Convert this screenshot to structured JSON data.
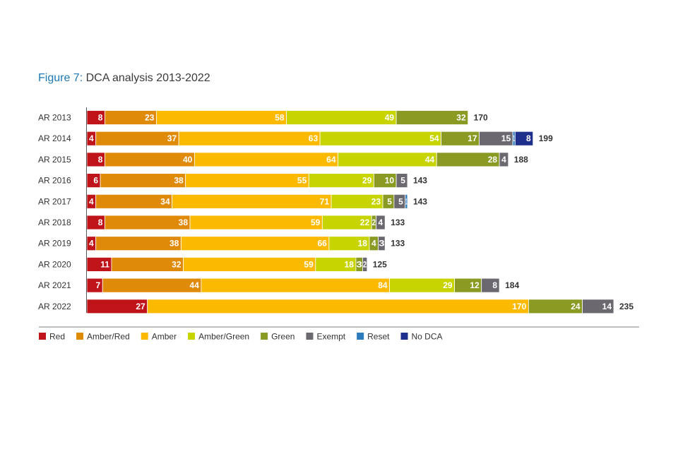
{
  "chart_data": {
    "type": "bar",
    "orientation": "horizontal",
    "stacked": true,
    "title_prefix": "Figure 7:",
    "title": "DCA analysis 2013-2022",
    "categories": [
      "AR 2013",
      "AR 2014",
      "AR 2015",
      "AR 2016",
      "AR 2017",
      "AR 2018",
      "AR 2019",
      "AR 2020",
      "AR 2021",
      "AR 2022"
    ],
    "series": [
      {
        "name": "Red",
        "color": "#c0141b",
        "values": [
          8,
          4,
          8,
          6,
          4,
          8,
          4,
          11,
          7,
          27
        ]
      },
      {
        "name": "Amber/Red",
        "color": "#e08a0a",
        "values": [
          23,
          37,
          40,
          38,
          34,
          38,
          38,
          32,
          44,
          0
        ]
      },
      {
        "name": "Amber",
        "color": "#fbb900",
        "values": [
          58,
          63,
          64,
          55,
          71,
          59,
          66,
          59,
          84,
          170
        ]
      },
      {
        "name": "Amber/Green",
        "color": "#c8d400",
        "values": [
          49,
          54,
          44,
          29,
          23,
          22,
          18,
          18,
          29,
          0
        ]
      },
      {
        "name": "Green",
        "color": "#8a9a22",
        "values": [
          32,
          17,
          28,
          10,
          5,
          2,
          4,
          3,
          12,
          24
        ]
      },
      {
        "name": "Exempt",
        "color": "#6b6870",
        "values": [
          0,
          15,
          4,
          5,
          5,
          4,
          3,
          2,
          8,
          14
        ]
      },
      {
        "name": "Reset",
        "color": "#2b7bbd",
        "values": [
          0,
          1,
          0,
          0,
          1,
          0,
          0,
          0,
          0,
          0
        ]
      },
      {
        "name": "No DCA",
        "color": "#1f2f8c",
        "values": [
          0,
          8,
          0,
          0,
          0,
          0,
          0,
          0,
          0,
          0
        ]
      }
    ],
    "totals": [
      170,
      199,
      188,
      143,
      143,
      133,
      133,
      125,
      184,
      235
    ],
    "legend_position": "bottom",
    "grid": false
  }
}
